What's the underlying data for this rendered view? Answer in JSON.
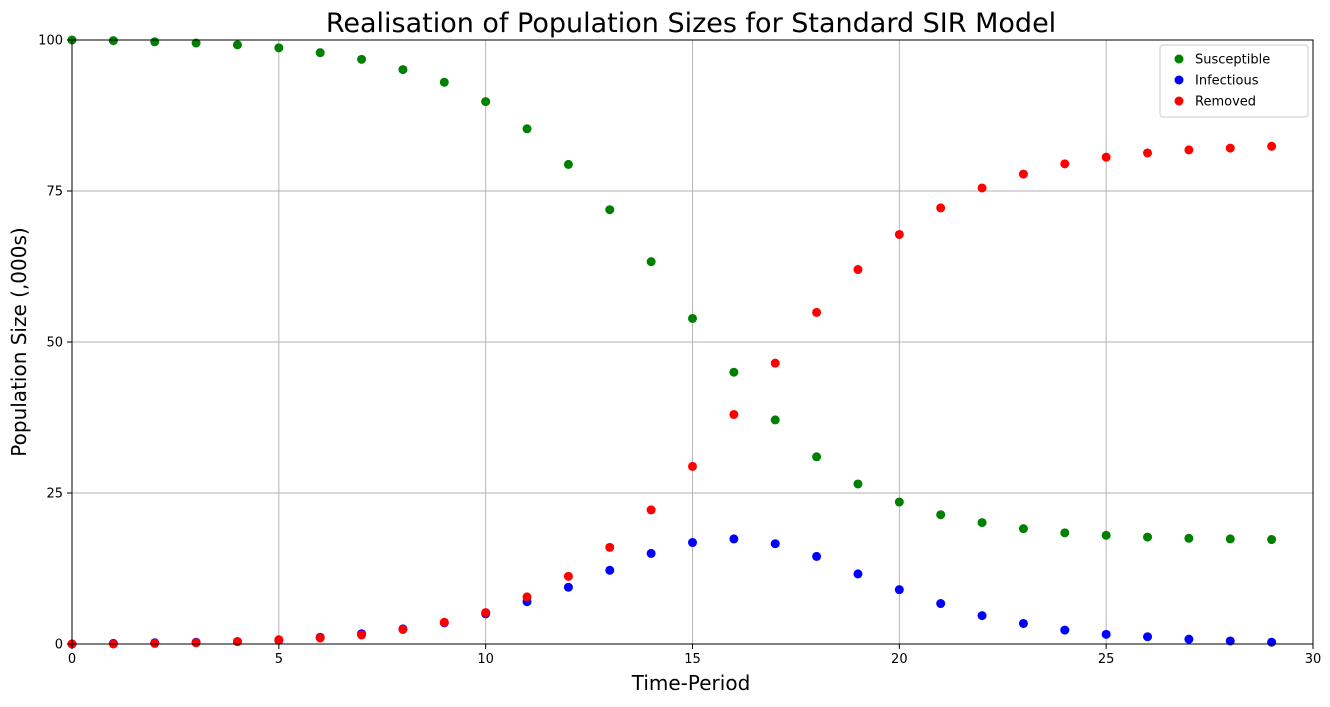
{
  "chart_data": {
    "type": "scatter",
    "title": "Realisation of Population Sizes for Standard SIR Model",
    "xlabel": "Time-Period",
    "ylabel": "Population Size (,000s)",
    "xlim": [
      0,
      30
    ],
    "ylim": [
      0,
      100
    ],
    "xticks": [
      0,
      5,
      10,
      15,
      20,
      25,
      30
    ],
    "yticks": [
      0,
      25,
      50,
      75,
      100
    ],
    "x_tick_labels": [
      "0",
      "5",
      "10",
      "15",
      "20",
      "25",
      "30"
    ],
    "y_tick_labels": [
      "0",
      "25",
      "50",
      "75",
      "100"
    ],
    "grid": true,
    "legend_position": "top-right",
    "x": [
      0,
      1,
      2,
      3,
      4,
      5,
      6,
      7,
      8,
      9,
      10,
      11,
      12,
      13,
      14,
      15,
      16,
      17,
      18,
      19,
      20,
      21,
      22,
      23,
      24,
      25,
      26,
      27,
      28,
      29
    ],
    "series": [
      {
        "name": "Susceptible",
        "color": "#008000",
        "values": [
          100.0,
          99.9,
          99.7,
          99.5,
          99.2,
          98.7,
          97.9,
          96.8,
          95.1,
          93.0,
          89.8,
          85.3,
          79.4,
          71.9,
          63.3,
          53.9,
          45.0,
          37.1,
          31.0,
          26.5,
          23.5,
          21.4,
          20.1,
          19.1,
          18.4,
          18.0,
          17.7,
          17.5,
          17.4,
          17.3
        ]
      },
      {
        "name": "Infectious",
        "color": "#0000ff",
        "values": [
          0.0,
          0.1,
          0.2,
          0.3,
          0.4,
          0.6,
          1.1,
          1.7,
          2.5,
          3.5,
          5.0,
          7.0,
          9.4,
          12.2,
          15.0,
          16.8,
          17.4,
          16.6,
          14.5,
          11.6,
          9.0,
          6.7,
          4.7,
          3.4,
          2.3,
          1.6,
          1.2,
          0.8,
          0.5,
          0.3
        ]
      },
      {
        "name": "Removed",
        "color": "#ff0000",
        "values": [
          0.0,
          0.0,
          0.1,
          0.2,
          0.4,
          0.7,
          1.0,
          1.5,
          2.4,
          3.6,
          5.2,
          7.8,
          11.2,
          16.0,
          22.2,
          29.4,
          38.0,
          46.5,
          54.9,
          62.0,
          67.8,
          72.2,
          75.5,
          77.8,
          79.5,
          80.6,
          81.3,
          81.8,
          82.1,
          82.4
        ]
      }
    ]
  }
}
